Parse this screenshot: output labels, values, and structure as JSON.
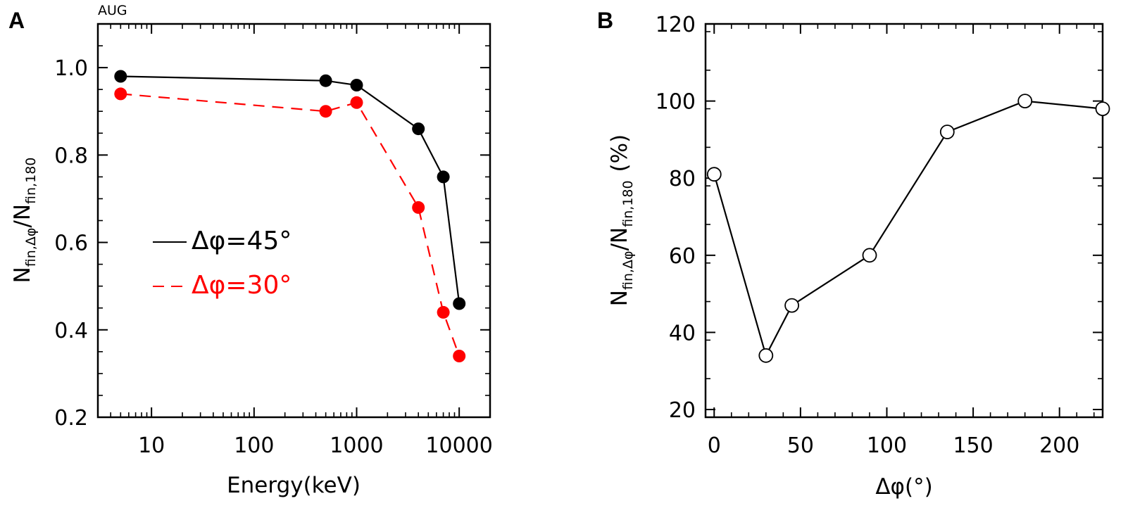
{
  "panels": {
    "a": {
      "letter": "A",
      "annotation": "AUG"
    },
    "b": {
      "letter": "B"
    }
  },
  "colors": {
    "series1": "#000000",
    "series2": "#ff0000",
    "axis": "#000000"
  },
  "chart_data": [
    {
      "id": "a",
      "type": "line",
      "title": "",
      "xlabel": "Energy(keV)",
      "ylabel": "N_{fin,Δφ}/N_{fin,180}",
      "ylabel_parts": {
        "n1": "N",
        "s1": "fin,Δφ",
        "slash": "/",
        "n2": "N",
        "s2": "fin,180"
      },
      "xscale": "log",
      "xlim": [
        3,
        20000
      ],
      "ylim": [
        0.2,
        1.1
      ],
      "xticks": [
        10,
        100,
        1000,
        10000
      ],
      "xtick_labels": [
        "10",
        "100",
        "1000",
        "10000"
      ],
      "yticks": [
        0.2,
        0.4,
        0.6,
        0.8,
        1.0
      ],
      "ytick_labels": [
        "0.2",
        "0.4",
        "0.6",
        "0.8",
        "1.0"
      ],
      "legend_placement": "center-left",
      "series": [
        {
          "name": "Δφ=45°",
          "style": "solid",
          "color": "#000000",
          "marker": "filled-circle",
          "x": [
            5,
            500,
            1000,
            4000,
            7000,
            10000
          ],
          "y": [
            0.98,
            0.97,
            0.96,
            0.86,
            0.75,
            0.46
          ]
        },
        {
          "name": "Δφ=30°",
          "style": "dashed",
          "color": "#ff0000",
          "marker": "filled-circle",
          "x": [
            5,
            500,
            1000,
            4000,
            7000,
            10000
          ],
          "y": [
            0.94,
            0.9,
            0.92,
            0.68,
            0.44,
            0.34
          ]
        }
      ]
    },
    {
      "id": "b",
      "type": "line",
      "title": "",
      "xlabel": "Δφ(°)",
      "ylabel": "N_{fin,Δφ}/N_{fin,180} (%)",
      "ylabel_parts": {
        "n1": "N",
        "s1": "fin,Δφ",
        "slash": "/",
        "n2": "N",
        "s2": "fin,180",
        "unit": "(%)"
      },
      "xscale": "linear",
      "xlim": [
        -5,
        225
      ],
      "ylim": [
        18,
        120
      ],
      "xticks": [
        0,
        50,
        100,
        150,
        200
      ],
      "xtick_labels": [
        "0",
        "50",
        "100",
        "150",
        "200"
      ],
      "yticks": [
        20,
        40,
        60,
        80,
        100,
        120
      ],
      "ytick_labels": [
        "20",
        "40",
        "60",
        "80",
        "100",
        "120"
      ],
      "series": [
        {
          "name": "",
          "style": "solid",
          "color": "#000000",
          "marker": "open-circle",
          "x": [
            0,
            30,
            45,
            90,
            135,
            180,
            225
          ],
          "y": [
            81,
            34,
            47,
            60,
            92,
            100,
            98
          ]
        }
      ]
    }
  ]
}
